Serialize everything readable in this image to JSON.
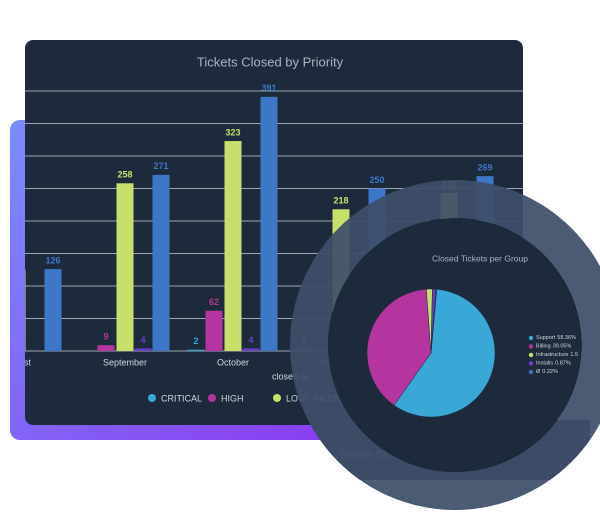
{
  "chart_data": [
    {
      "type": "bar",
      "title": "Tickets Closed by Priority",
      "x_label": "closed at",
      "categories": [
        "August",
        "September",
        "October",
        "November",
        null
      ],
      "series": [
        {
          "name": "CRITICAL",
          "color": "#3aa8d6",
          "values": [
            null,
            null,
            2,
            2,
            null
          ]
        },
        {
          "name": "HIGH",
          "color": "#b4359f",
          "values": [
            null,
            9,
            62,
            null,
            null
          ]
        },
        {
          "name": "LOW",
          "color": "#c8e06a",
          "values": [
            125,
            258,
            323,
            218,
            243
          ]
        },
        {
          "name": "MEDIUM",
          "color": "#6a3fc8",
          "values": [
            null,
            4,
            4,
            23,
            null
          ]
        },
        {
          "name": null,
          "color": "#3d77c7",
          "values": [
            126,
            271,
            391,
            250,
            269
          ]
        }
      ],
      "ylim": [
        0,
        400
      ],
      "yticks": [
        0,
        50,
        100,
        150,
        200,
        250,
        300,
        350,
        400
      ],
      "grid": true
    },
    {
      "type": "pie",
      "title": "Closed Tickets per Group",
      "categories": [
        "Support",
        "Billing",
        "Infrastructure",
        "Installs",
        "Ø"
      ],
      "values": [
        58.36,
        39.05,
        1.5,
        0.87,
        0.22
      ],
      "value_labels": [
        "58.36%",
        "39.05%",
        "1.5%",
        "0.87%",
        "0.22%"
      ],
      "colors": [
        "#3aa8d6",
        "#b4359f",
        "#c8e06a",
        "#6a3fc8",
        "#3d6fc4"
      ]
    }
  ],
  "background_card_title": "Tickets Closed by Priority"
}
